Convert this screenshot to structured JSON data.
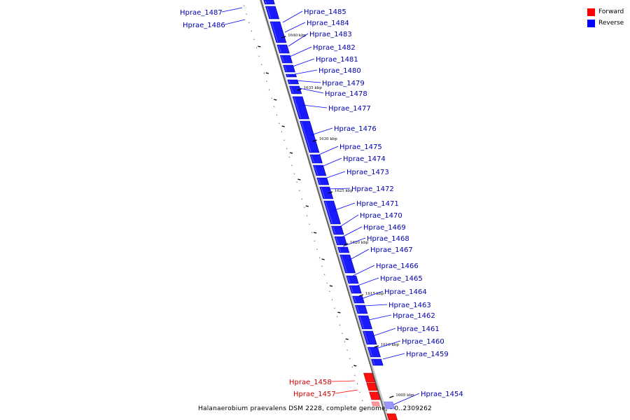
{
  "legend": {
    "forward": {
      "label": "Forward",
      "color": "#ff0000"
    },
    "reverse": {
      "label": "Reverse",
      "color": "#0000ff"
    }
  },
  "caption": "Halanaerobium praevalens DSM 2228, complete genome, - 0..2309262",
  "scale_ticks": [
    "1640 kbp",
    "1635 kbp",
    "1630 kbp",
    "1625 kbp",
    "1620 kbp",
    "1615 kbp",
    "1610 kbp",
    "1605 kbp"
  ],
  "genes": [
    {
      "name": "Hprae_1487",
      "strand": "reverse"
    },
    {
      "name": "Hprae_1486",
      "strand": "reverse"
    },
    {
      "name": "Hprae_1485",
      "strand": "reverse"
    },
    {
      "name": "Hprae_1484",
      "strand": "reverse"
    },
    {
      "name": "Hprae_1483",
      "strand": "reverse"
    },
    {
      "name": "Hprae_1482",
      "strand": "reverse"
    },
    {
      "name": "Hprae_1481",
      "strand": "reverse"
    },
    {
      "name": "Hprae_1480",
      "strand": "reverse"
    },
    {
      "name": "Hprae_1479",
      "strand": "reverse"
    },
    {
      "name": "Hprae_1478",
      "strand": "reverse"
    },
    {
      "name": "Hprae_1477",
      "strand": "reverse"
    },
    {
      "name": "Hprae_1476",
      "strand": "reverse"
    },
    {
      "name": "Hprae_1475",
      "strand": "reverse"
    },
    {
      "name": "Hprae_1474",
      "strand": "reverse"
    },
    {
      "name": "Hprae_1473",
      "strand": "reverse"
    },
    {
      "name": "Hprae_1472",
      "strand": "reverse"
    },
    {
      "name": "Hprae_1471",
      "strand": "reverse"
    },
    {
      "name": "Hprae_1470",
      "strand": "reverse"
    },
    {
      "name": "Hprae_1469",
      "strand": "reverse"
    },
    {
      "name": "Hprae_1468",
      "strand": "reverse"
    },
    {
      "name": "Hprae_1467",
      "strand": "reverse"
    },
    {
      "name": "Hprae_1466",
      "strand": "reverse"
    },
    {
      "name": "Hprae_1465",
      "strand": "reverse"
    },
    {
      "name": "Hprae_1464",
      "strand": "reverse"
    },
    {
      "name": "Hprae_1463",
      "strand": "reverse"
    },
    {
      "name": "Hprae_1462",
      "strand": "reverse"
    },
    {
      "name": "Hprae_1461",
      "strand": "reverse"
    },
    {
      "name": "Hprae_1460",
      "strand": "reverse"
    },
    {
      "name": "Hprae_1459",
      "strand": "reverse"
    },
    {
      "name": "Hprae_1458",
      "strand": "forward"
    },
    {
      "name": "Hprae_1457",
      "strand": "forward"
    },
    {
      "name": "Hprae_1454",
      "strand": "reverse"
    }
  ]
}
